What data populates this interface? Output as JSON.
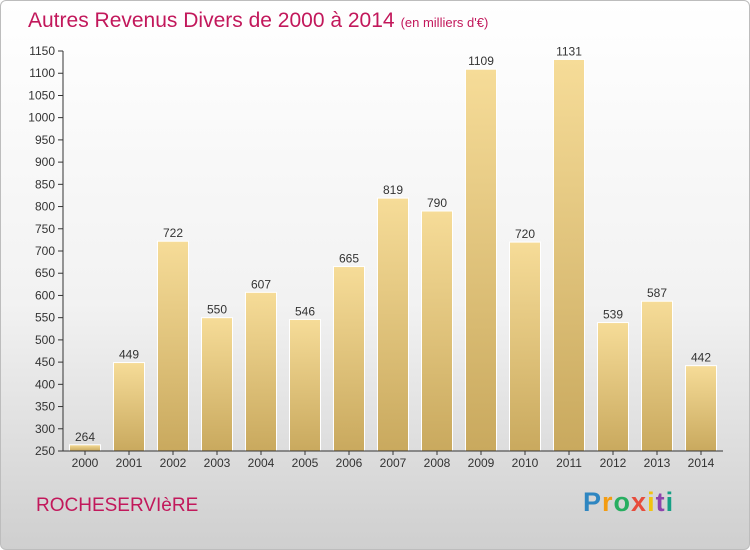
{
  "title": "Autres Revenus Divers de 2000 à 2014",
  "subtitle": "(en milliers d'€)",
  "location": "ROCHESERVIèRE",
  "logo": {
    "letters": [
      "P",
      "r",
      "o",
      "x",
      "i",
      "t",
      "i"
    ],
    "colors": [
      "#2e86c1",
      "#f39c12",
      "#27ae60",
      "#e74c3c",
      "#f1c40f",
      "#8e44ad",
      "#16a085"
    ]
  },
  "colors": {
    "accent": "#c2185b",
    "bar_light": "#f6dc98",
    "bar_dark": "#c9a95e"
  },
  "chart_data": {
    "type": "bar",
    "categories": [
      "2000",
      "2001",
      "2002",
      "2003",
      "2004",
      "2005",
      "2006",
      "2007",
      "2008",
      "2009",
      "2010",
      "2011",
      "2012",
      "2013",
      "2014"
    ],
    "values": [
      264,
      449,
      722,
      550,
      607,
      546,
      665,
      819,
      790,
      1109,
      720,
      1131,
      539,
      587,
      442
    ],
    "ylim": [
      250,
      1150
    ],
    "yticks": [
      250,
      300,
      350,
      400,
      450,
      500,
      550,
      600,
      650,
      700,
      750,
      800,
      850,
      900,
      950,
      1000,
      1050,
      1100,
      1150
    ],
    "grid": false,
    "legend": "none"
  }
}
